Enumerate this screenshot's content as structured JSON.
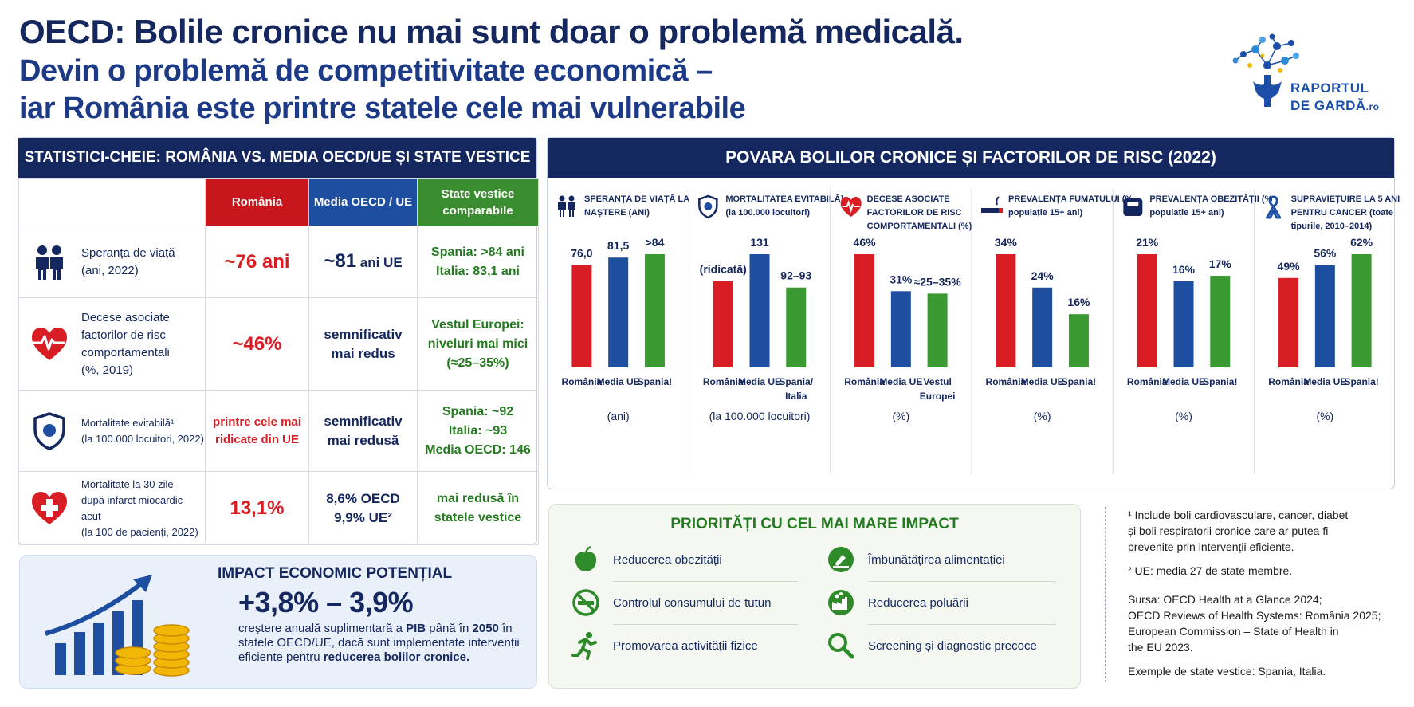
{
  "title": {
    "line1": "OECD: Bolile cronice nu mai sunt doar o problemă medicală.",
    "line2": "Devin o problemă de competitivitate economică –",
    "line3": "iar România este printre statele cele mai vulnerabile"
  },
  "logo": {
    "line1": "RAPORTUL",
    "line2": "DE GARDĂ",
    "suffix": ".ro"
  },
  "stats": {
    "header": "STATISTICI-CHEIE: ROMÂNIA VS. MEDIA OECD/UE ȘI STATE VESTICE",
    "columns": {
      "romania": "România",
      "eu": "Media OECD / UE",
      "west": "State vestice\ncomparabile"
    },
    "rows": [
      {
        "icon": "people-icon",
        "label": "Speranța de viață\n(ani, 2022)",
        "romania": "~76 ani",
        "eu_value": "~81",
        "eu_suffix": " ani UE",
        "west": "Spania: >84 ani\nItalia: 83,1 ani"
      },
      {
        "icon": "heart-pulse-icon",
        "label": "Decese asociate\nfactorilor de risc\ncomportamentali\n(%, 2019)",
        "romania": "~46%",
        "eu": "semnificativ\nmai redus",
        "west": "Vestul Europei:\nniveluri mai mici\n(≈25–35%)"
      },
      {
        "icon": "shield-icon",
        "label": "Mortalitate evitabilă¹\n(la 100.000 locuitori, 2022)",
        "romania": "printre cele mai\nridicate din UE",
        "eu": "semnificativ\nmai redusă",
        "west": "Spania: ~92\nItalia: ~93\nMedia OECD: 146"
      },
      {
        "icon": "heart-cross-icon",
        "label": "Mortalitate la 30 zile\ndupă infarct miocardic acut\n(la 100 de pacienți, 2022)",
        "romania": "13,1%",
        "eu": "8,6% OECD\n9,9% UE²",
        "west": "mai redusă în\nstatele vestice"
      }
    ]
  },
  "impact": {
    "title": "IMPACT ECONOMIC POTENȚIAL",
    "value": "+3,8% – 3,9%",
    "desc_1": "creștere anuală suplimentară a ",
    "desc_bold1": "PIB",
    "desc_2": " până în ",
    "desc_bold2": "2050",
    "desc_3": " în statele OECD/UE, dacă sunt implementate intervenții eficiente pentru ",
    "desc_bold3": "reducerea bolilor cronice."
  },
  "chart_panel": {
    "header": "POVARA BOLILOR CRONICE ȘI FACTORILOR DE RISC (2022)"
  },
  "chart_data": [
    {
      "type": "bar",
      "title": "SPERANȚA DE VIAȚĂ LA NAȘTERE (ANI)",
      "icon": "people-icon",
      "unit": "(ani)",
      "categories": [
        "România",
        "Media UE",
        "Spania!"
      ],
      "values": [
        76.0,
        81.5,
        84
      ],
      "labels": [
        "76,0",
        "81,5",
        ">84"
      ],
      "colors": [
        "#d81d24",
        "#1d4e9f",
        "#3a9a31"
      ]
    },
    {
      "type": "bar",
      "title": "MORTALITATEA EVITABILĂ¹ (la 100.000 locuitori)",
      "icon": "shield-icon",
      "unit": "(la 100.000 locuitori)",
      "categories": [
        "România",
        "Media UE",
        "Spania/ Italia"
      ],
      "values": [
        100,
        131,
        92.5
      ],
      "labels": [
        "(ridicată)",
        "131",
        "92–93"
      ],
      "colors": [
        "#d81d24",
        "#1d4e9f",
        "#3a9a31"
      ]
    },
    {
      "type": "bar",
      "title": "DECESE ASOCIATE FACTORILOR DE RISC COMPORTAMENTALI (%)",
      "icon": "heart-pulse-icon",
      "unit": "(%)",
      "categories": [
        "România",
        "Media UE",
        "Vestul Europei"
      ],
      "values": [
        46,
        31,
        30
      ],
      "labels": [
        "46%",
        "31%",
        "≈25–35%"
      ],
      "colors": [
        "#d81d24",
        "#1d4e9f",
        "#3a9a31"
      ]
    },
    {
      "type": "bar",
      "title": "PREVALENȚA FUMATULUI (% populație 15+ ani)",
      "icon": "cigarette-icon",
      "unit": "(%)",
      "categories": [
        "România",
        "Media UE",
        "Spania!"
      ],
      "values": [
        34,
        24,
        16
      ],
      "labels": [
        "34%",
        "24%",
        "16%"
      ],
      "colors": [
        "#d81d24",
        "#1d4e9f",
        "#3a9a31"
      ]
    },
    {
      "type": "bar",
      "title": "PREVALENȚA OBEZITĂȚII (% populație 15+ ani)",
      "icon": "scale-icon",
      "unit": "(%)",
      "categories": [
        "România",
        "Media UE",
        "Spania!"
      ],
      "values": [
        21,
        16,
        17
      ],
      "labels": [
        "21%",
        "16%",
        "17%"
      ],
      "colors": [
        "#d81d24",
        "#1d4e9f",
        "#3a9a31"
      ]
    },
    {
      "type": "bar",
      "title": "SUPRAVIEȚUIRE LA 5 ANI PENTRU CANCER (toate tipurile, 2010–2014)",
      "icon": "ribbon-icon",
      "unit": "(%)",
      "categories": [
        "România",
        "Media UE",
        "Spania!"
      ],
      "values": [
        49,
        56,
        62
      ],
      "labels": [
        "49%",
        "56%",
        "62%"
      ],
      "colors": [
        "#d81d24",
        "#1d4e9f",
        "#3a9a31"
      ]
    }
  ],
  "priorities": {
    "title": "PRIORITĂȚI CU CEL MAI MARE IMPACT",
    "items": [
      {
        "icon": "apple-icon",
        "label": "Reducerea obezității"
      },
      {
        "icon": "no-smoking-icon",
        "label": "Controlul consumului de tutun"
      },
      {
        "icon": "running-icon",
        "label": "Promovarea activității fizice"
      },
      {
        "icon": "healthy-food-icon",
        "label": "Îmbunătățirea alimentației"
      },
      {
        "icon": "factory-icon",
        "label": "Reducerea poluării"
      },
      {
        "icon": "magnifier-icon",
        "label": "Screening și diagnostic precoce"
      }
    ]
  },
  "notes": {
    "n1": "¹ Include boli cardiovasculare, cancer, diabet\n  și boli respiratorii cronice care ar putea fi\n  prevenite prin intervenții eficiente.",
    "n2": "² UE: media 27 de state membre.",
    "source": "Sursa: OECD Health at a Glance 2024;\nOECD Reviews of Health Systems: România 2025;\nEuropean Commission – State of Health in\nthe EU 2023.",
    "examples": "Exemple de state vestice: Spania, Italia."
  }
}
